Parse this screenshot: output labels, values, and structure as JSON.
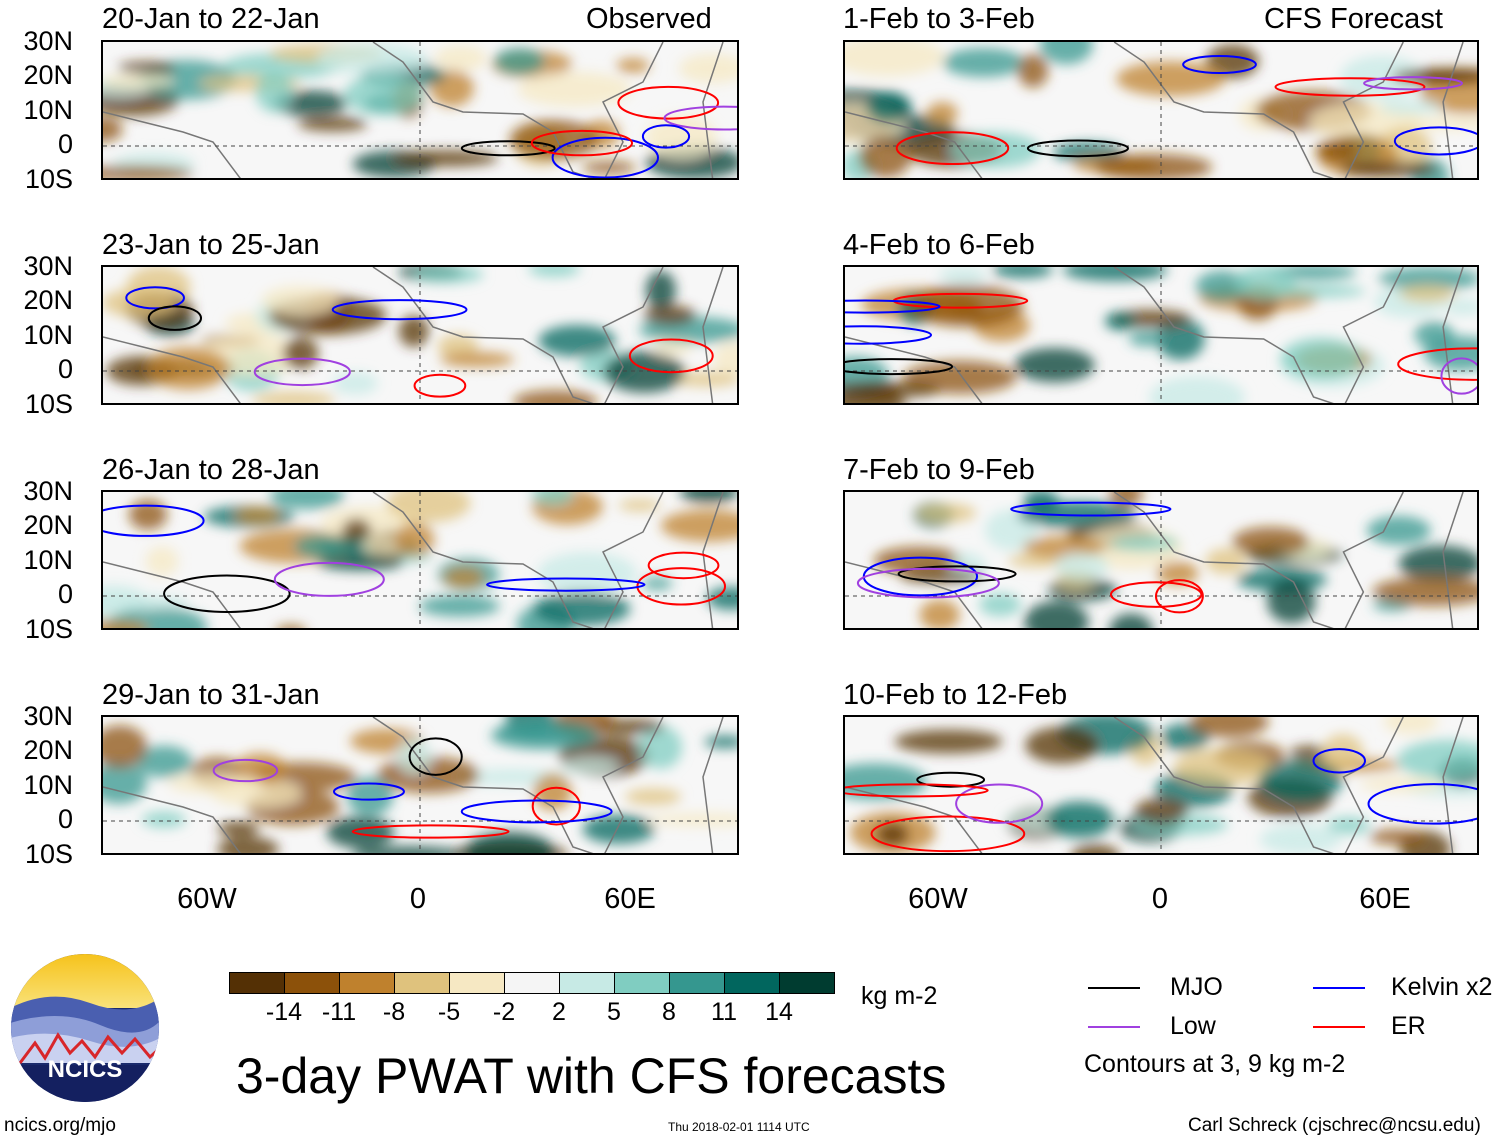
{
  "panels": {
    "left": [
      {
        "title": "20-Jan to 22-Jan",
        "right_label": "Observed"
      },
      {
        "title": "23-Jan to 25-Jan",
        "right_label": ""
      },
      {
        "title": "26-Jan to 28-Jan",
        "right_label": ""
      },
      {
        "title": "29-Jan to 31-Jan",
        "right_label": ""
      }
    ],
    "right": [
      {
        "title": "1-Feb to 3-Feb",
        "right_label": "CFS Forecast"
      },
      {
        "title": "4-Feb to 6-Feb",
        "right_label": ""
      },
      {
        "title": "7-Feb to 9-Feb",
        "right_label": ""
      },
      {
        "title": "10-Feb to 12-Feb",
        "right_label": ""
      }
    ]
  },
  "y_labels": [
    "30N",
    "20N",
    "10N",
    "0",
    "10S"
  ],
  "x_labels": [
    "60W",
    "0",
    "60E"
  ],
  "colorbar": {
    "unit": "kg m-2",
    "ticks": [
      "-14",
      "-11",
      "-8",
      "-5",
      "-2",
      "2",
      "5",
      "8",
      "11",
      "14"
    ],
    "colors": [
      "#543005",
      "#8c510a",
      "#bf812d",
      "#dfc27d",
      "#f6e8c3",
      "#f5f5f5",
      "#c7eae5",
      "#80cdc1",
      "#35978f",
      "#01665e",
      "#003c30"
    ]
  },
  "legend": {
    "items": [
      {
        "label": "MJO",
        "color": "#000000"
      },
      {
        "label": "Kelvin x2",
        "color": "#0000ff"
      },
      {
        "label": "Low",
        "color": "#a040e0"
      },
      {
        "label": "ER",
        "color": "#ff0000"
      }
    ],
    "note": "Contours at 3, 9 kg m-2"
  },
  "logo_text": "NCICS",
  "main_title": "3-day PWAT with CFS forecasts",
  "footer": {
    "left": "ncics.org/mjo",
    "center": "Thu 2018-02-01 1114 UTC",
    "right": "Carl Schreck (cjschrec@ncsu.edu)"
  }
}
